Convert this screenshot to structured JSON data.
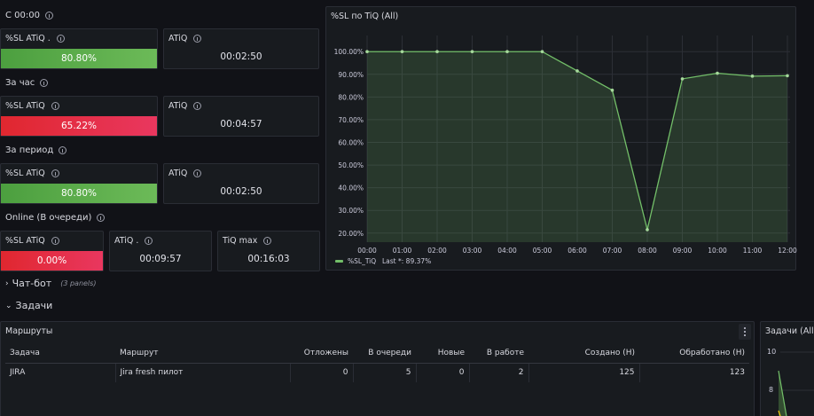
{
  "sections": {
    "c0000": "С 00:00",
    "hour": "За час",
    "period": "За период",
    "online": "Online (В очереди)"
  },
  "stats": {
    "s1": {
      "sl_title": "%SL ATiQ .",
      "sl_value": "80.80%",
      "atiq_title": "ATiQ",
      "atiq_value": "00:02:50"
    },
    "s2": {
      "sl_title": "%SL ATiQ",
      "sl_value": "65.22%",
      "atiq_title": "ATiQ",
      "atiq_value": "00:04:57"
    },
    "s3": {
      "sl_title": "%SL ATiQ",
      "sl_value": "80.80%",
      "atiq_title": "ATiQ",
      "atiq_value": "00:02:50"
    },
    "s4": {
      "sl_title": "%SL ATiQ",
      "sl_value": "0.00%",
      "atiq_title": "ATiQ .",
      "atiq_value": "00:09:57",
      "tiq_title": "TiQ max",
      "tiq_value": "00:16:03"
    }
  },
  "chart_panel": {
    "title": "%SL по TiQ (All)"
  },
  "chart_data": {
    "type": "line",
    "x": [
      "00:00",
      "01:00",
      "02:00",
      "03:00",
      "04:00",
      "05:00",
      "06:00",
      "07:00",
      "08:00",
      "09:00",
      "10:00",
      "11:00",
      "12:00"
    ],
    "series": [
      {
        "name": "%SL_TiQ",
        "values": [
          100,
          100,
          100,
          100,
          100,
          100,
          91.5,
          83,
          21.5,
          88,
          90.5,
          89.2,
          89.37
        ]
      }
    ],
    "y_ticks": [
      "100.00%",
      "90.00%",
      "80.00%",
      "70.00%",
      "60.00%",
      "50.00%",
      "40.00%",
      "30.00%",
      "20.00%"
    ],
    "ylim": [
      16,
      104
    ],
    "grid": true,
    "legend": {
      "label": "%SL_TiQ",
      "last_text": "Last *: 89.37%",
      "placement": "bottom-left"
    },
    "color": "#73bf69"
  },
  "rows": {
    "chatbot": {
      "label": "Чат-бот",
      "meta": "(3 panels)"
    },
    "tasks": {
      "label": "Задачи"
    }
  },
  "routes": {
    "title": "Маршруты",
    "columns": [
      "Задача",
      "Маршрут",
      "Отложены",
      "В очереди",
      "Новые",
      "В работе",
      "Создано (Н)",
      "Обработано (Н)"
    ],
    "rows": [
      [
        "JIRA",
        "Jira fresh пилот",
        "0",
        "5",
        "0",
        "2",
        "125",
        "123"
      ]
    ]
  },
  "tasks_panel": {
    "title": "Задачи (All)",
    "tick_top": "10",
    "tick_mid": "8"
  }
}
